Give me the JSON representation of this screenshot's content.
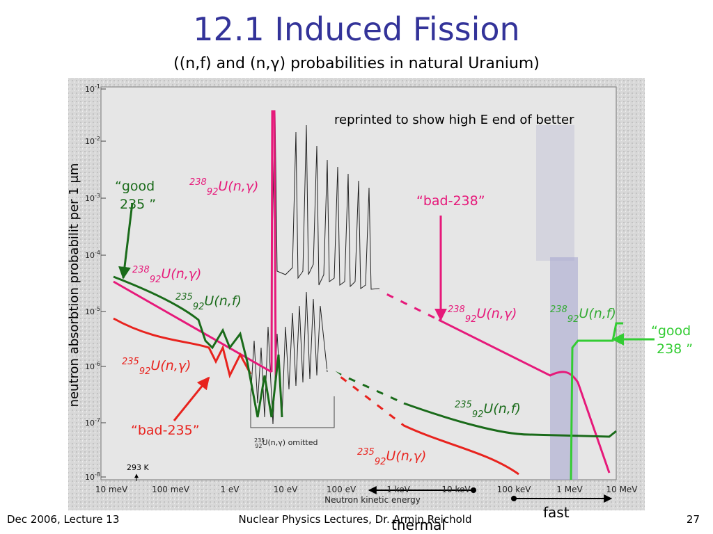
{
  "header": {
    "title": "12.1 Induced Fission",
    "subtitle": "((n,f) and (n,γ) probabilities in natural Uranium)"
  },
  "figure": {
    "y_label": "neutron absorbtion probabilit per 1 μm",
    "x_label": "Neutron kinetic energy",
    "y_ticks": [
      {
        "base": "10",
        "exp": "-1"
      },
      {
        "base": "10",
        "exp": "-2"
      },
      {
        "base": "10",
        "exp": "-3"
      },
      {
        "base": "10",
        "exp": "-4"
      },
      {
        "base": "10",
        "exp": "-5"
      },
      {
        "base": "10",
        "exp": "-6"
      },
      {
        "base": "10",
        "exp": "-7"
      },
      {
        "base": "10",
        "exp": "-8"
      }
    ],
    "x_ticks": [
      "10 meV",
      "100 meV",
      "1 eV",
      "10 eV",
      "100 eV",
      "1 keV",
      "10 keV",
      "100 keV",
      "1 MeV",
      "10 MeV"
    ],
    "temperature": "293 K",
    "omitted": {
      "mass": "235",
      "charge": "92",
      "text": "U(n,γ) omitted"
    },
    "note": "reprinted to show high E end of better"
  },
  "annotations": {
    "good_235": [
      "“good",
      "235 ”"
    ],
    "bad_238": "“bad-238”",
    "bad_235": "“bad-235”",
    "good_238": [
      "“good",
      "238 ”"
    ]
  },
  "reactions": [
    {
      "mass": "238",
      "charge": "92",
      "reaction": "U(n,γ)"
    },
    {
      "mass": "238",
      "charge": "92",
      "reaction": "U(n,γ)"
    },
    {
      "mass": "235",
      "charge": "92",
      "reaction": "U(n,f)"
    },
    {
      "mass": "235",
      "charge": "92",
      "reaction": "U(n,γ)"
    },
    {
      "mass": "238",
      "charge": "92",
      "reaction": "U(n,γ)"
    },
    {
      "mass": "238",
      "charge": "92",
      "reaction": "U(n,f)"
    },
    {
      "mass": "235",
      "charge": "92",
      "reaction": "U(n,f)"
    },
    {
      "mass": "235",
      "charge": "92",
      "reaction": "U(n,γ)"
    }
  ],
  "ranges": {
    "fast": "fast",
    "thermal": "thermal"
  },
  "footer": {
    "left": "Dec 2006, Lecture 13",
    "center": "Nuclear Physics  Lectures, Dr. Armin Reichold",
    "page": "27"
  }
}
